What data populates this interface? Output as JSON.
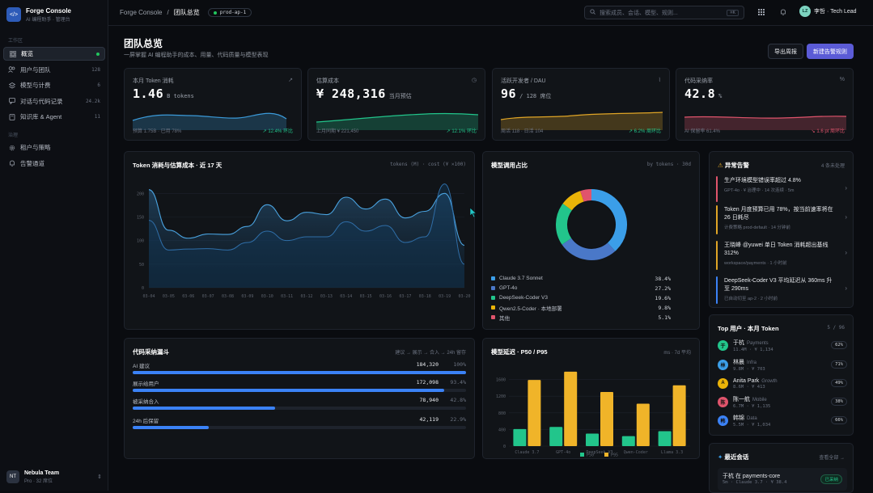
{
  "app": {
    "name": "Forge Console",
    "subtitle": "AI 编程助手 · 管理台"
  },
  "sidebar": {
    "section_main": "工作区",
    "items": [
      {
        "label": "概览",
        "count": "",
        "icon": "grid-icon"
      },
      {
        "label": "用户与团队",
        "count": "128",
        "icon": "users-icon"
      },
      {
        "label": "模型与计费",
        "count": "6",
        "icon": "layers-icon"
      },
      {
        "label": "对话与代码记录",
        "count": "24.2k",
        "icon": "chat-icon"
      },
      {
        "label": "知识库 & Agent",
        "count": "11",
        "icon": "book-icon"
      }
    ],
    "section_gov": "治理",
    "gov_items": [
      {
        "label": "租户与策略",
        "icon": "gear-icon"
      },
      {
        "label": "告警通道",
        "icon": "bell-icon"
      }
    ],
    "team": {
      "initials": "NT",
      "name": "Nebula Team",
      "plan": "Pro · 32 席位"
    }
  },
  "topbar": {
    "breadcrumb_root": "Forge Console",
    "breadcrumb_current": "团队总览",
    "env": "prod-ap-1",
    "search_placeholder": "搜索成员、会话、模型、规则...",
    "search_kbd": "⌘K",
    "user": {
      "initials": "LZ",
      "label": "李哲 · Tech Lead"
    }
  },
  "page": {
    "title": "团队总览",
    "subtitle": "一屏掌握 AI 编程助手的成本、用量、代码质量与模型表现",
    "export_label": "导出周报",
    "new_alert_label": "新建告警规则"
  },
  "kpis": [
    {
      "label": "本月 Token 消耗",
      "value": "1.46",
      "unit": "B tokens",
      "foot_l": "预算 1.75B · 已用 78%",
      "foot_r": "↗ 12.4% 环比",
      "color": "#3b9ad9",
      "up": true
    },
    {
      "label": "估算成本",
      "value": "¥ 248,316",
      "unit": "当月预估",
      "foot_l": "上月同期 ¥ 221,450",
      "foot_r": "↗ 12.1% 环比",
      "color": "#22c58b",
      "up": true
    },
    {
      "label": "活跃开发者 / DAU",
      "value": "96",
      "unit": "/ 128 席位",
      "foot_l": "周活 118 · 日活 104",
      "foot_r": "↗ 6.2% 周环比",
      "color": "#e0a526",
      "up": true
    },
    {
      "label": "代码采纳率",
      "value": "42.8",
      "unit": "%",
      "foot_l": "AI 保留率 61.4%",
      "foot_r": "↘ 1.6 pt 周环比",
      "color": "#e0546c",
      "up": false
    }
  ],
  "trend": {
    "title": "Token 消耗与估算成本 · 近 17 天",
    "meta": "tokens (M) · cost (¥ ×100)"
  },
  "mix": {
    "title": "模型调用占比",
    "meta": "by tokens · 30d",
    "items": [
      {
        "name": "Claude 3.7 Sonnet",
        "pct": "38.4%",
        "color": "#3b9ee8"
      },
      {
        "name": "GPT-4o",
        "pct": "27.2%",
        "color": "#4a78c8"
      },
      {
        "name": "DeepSeek-Coder V3",
        "pct": "19.6%",
        "color": "#22c58b"
      },
      {
        "name": "Qwen2.5-Coder · 本地部署",
        "pct": "9.8%",
        "color": "#eab308"
      },
      {
        "name": "其他",
        "pct": "5.1%",
        "color": "#e0546c"
      }
    ]
  },
  "funnel": {
    "title": "代码采纳漏斗",
    "meta": "建议 → 展示 → 合入 → 24h 留存",
    "rows": [
      {
        "label": "AI 建议",
        "value": "184,320",
        "pct": "100%",
        "frac": 1.0
      },
      {
        "label": "展示给用户",
        "value": "172,098",
        "pct": "93.4%",
        "frac": 0.934
      },
      {
        "label": "被采纳合入",
        "value": "78,940",
        "pct": "42.8%",
        "frac": 0.428
      },
      {
        "label": "24h 后保留",
        "value": "42,119",
        "pct": "22.9%",
        "frac": 0.229
      }
    ]
  },
  "latency": {
    "title": "模型延迟 · P50 / P95",
    "meta": "ms · 7d 平均",
    "legend_p50": "P50",
    "legend_p95": "P95"
  },
  "chart_data": [
    {
      "type": "area",
      "title": "Token 消耗与估算成本 · 近 17 天",
      "ylim": [
        0,
        240
      ],
      "yticks": [
        "0",
        "50",
        "100",
        "150",
        "200"
      ],
      "x": [
        "03-04",
        "03-05",
        "03-06",
        "03-07",
        "03-08",
        "03-09",
        "03-10",
        "03-11",
        "03-12",
        "03-13",
        "03-14",
        "03-15",
        "03-16",
        "03-17",
        "03-18",
        "03-19",
        "03-20"
      ],
      "series": [
        {
          "values": [
            208,
            122,
            105,
            114,
            113,
            130,
            176,
            142,
            160,
            155,
            192,
            167,
            188,
            148,
            162,
            200,
            90
          ]
        },
        {
          "values": [
            143,
            80,
            82,
            83,
            80,
            96,
            120,
            100,
            108,
            108,
            140,
            120,
            132,
            96,
            108,
            220,
            50
          ]
        }
      ]
    },
    {
      "type": "pie",
      "title": "模型调用占比",
      "categories": [
        "Claude 3.7 Sonnet",
        "GPT-4o",
        "DeepSeek-Coder V3",
        "Qwen2.5-Coder · 本地部署",
        "其他"
      ],
      "values": [
        38.4,
        27.2,
        19.6,
        9.8,
        5.1
      ]
    },
    {
      "type": "bar",
      "title": "模型延迟 · P50 / P95",
      "ylim": [
        0,
        2000
      ],
      "yticks": [
        "0",
        "400",
        "800",
        "1200",
        "1600"
      ],
      "categories": [
        "Claude 3.7",
        "GPT-4o",
        "DeepSeek V3",
        "Qwen-Coder",
        "Llama 3.3"
      ],
      "series": [
        {
          "name": "P50",
          "color": "#22c58b",
          "values": [
            410,
            460,
            300,
            240,
            360
          ]
        },
        {
          "name": "P95",
          "color": "#f0b429",
          "values": [
            1590,
            1790,
            1300,
            1020,
            1460
          ]
        }
      ]
    }
  ],
  "alerts": {
    "title": "异常告警",
    "count": "4 条未处理",
    "items": [
      {
        "text": "生产环境模型错误率超过 4.8%",
        "sub": "GPT-4o · ¥ 治理中 · 14 次连续 · 5m",
        "color": "#e0546c"
      },
      {
        "text": "Token 月度预算已用 78%，按当前速率将在 26 日耗尽",
        "sub": "计费策略 prod-default · 14 分钟前",
        "color": "#e0a526"
      },
      {
        "text": "王晓峰 @yuwei 单日 Token 消耗超出基线 312%",
        "sub": "workspace/payments · 1 小时前",
        "color": "#e0a526"
      },
      {
        "text": "DeepSeek-Coder V3 平均延迟从 360ms 升至 290ms",
        "sub": "已自动切至 ap-2 · 2 小时前",
        "color": "#3b82f6"
      }
    ]
  },
  "top_users": {
    "title": "Top 用户 · 本月 Token",
    "meta": "5 / 96",
    "items": [
      {
        "initial": "于",
        "name": "于杭",
        "team": "Payments",
        "meta": "11.4M · ¥ 1,134",
        "pct": "62%",
        "color": "#22c58b"
      },
      {
        "initial": "林",
        "name": "林晨",
        "team": "Infra",
        "meta": "9.8M · ¥ 703",
        "pct": "71%",
        "color": "#3b9ee8"
      },
      {
        "initial": "A",
        "name": "Anita Park",
        "team": "Growth",
        "meta": "8.6M · ¥ 413",
        "pct": "49%",
        "color": "#eab308"
      },
      {
        "initial": "陈",
        "name": "陈一航",
        "team": "Mobile",
        "meta": "6.7M · ¥ 1,135",
        "pct": "38%",
        "color": "#e0546c"
      },
      {
        "initial": "韩",
        "name": "韩锦",
        "team": "Data",
        "meta": "5.5M · ¥ 1,034",
        "pct": "66%",
        "color": "#3b82f6"
      }
    ]
  },
  "recent": {
    "title": "最近会话",
    "all_label": "查看全部 →",
    "item_title": "于杭 在 payments-core",
    "item_meta": "5m · Claude 3.7 · ¥ 38.4",
    "item_status": "已采纳"
  }
}
